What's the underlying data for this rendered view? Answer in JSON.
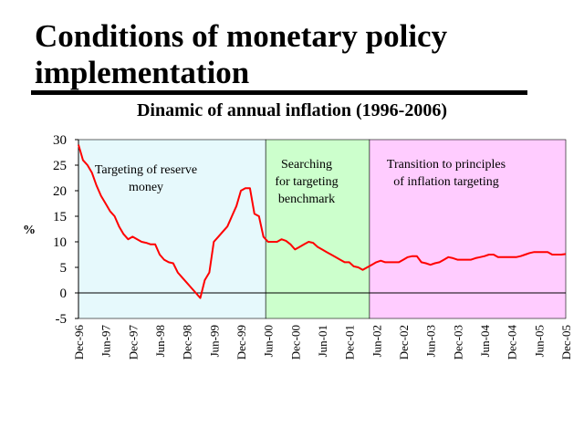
{
  "slide_title_line1": "Conditions of monetary policy",
  "slide_title_line2": "implementation",
  "chart_data": {
    "type": "line",
    "title": "Dinamic of annual inflation (1996-2006)",
    "ylabel": "%",
    "xlabel": "",
    "ylim": [
      -5,
      30
    ],
    "yticks": [
      -5,
      0,
      5,
      10,
      15,
      20,
      25,
      30
    ],
    "xlim": [
      0,
      108
    ],
    "x_tick_labels": [
      {
        "label": "Dec-96",
        "x": 0
      },
      {
        "label": "Jun-97",
        "x": 6
      },
      {
        "label": "Dec-97",
        "x": 12
      },
      {
        "label": "Jun-98",
        "x": 18
      },
      {
        "label": "Dec-98",
        "x": 24
      },
      {
        "label": "Jun-99",
        "x": 30
      },
      {
        "label": "Dec-99",
        "x": 36
      },
      {
        "label": "Jun-00",
        "x": 42
      },
      {
        "label": "Dec-00",
        "x": 48
      },
      {
        "label": "Jun-01",
        "x": 54
      },
      {
        "label": "Dec-01",
        "x": 60
      },
      {
        "label": "Jun-02",
        "x": 66
      },
      {
        "label": "Dec-02",
        "x": 72
      },
      {
        "label": "Jun-03",
        "x": 78
      },
      {
        "label": "Dec-03",
        "x": 84
      },
      {
        "label": "Jun-04",
        "x": 90
      },
      {
        "label": "Dec-04",
        "x": 96
      },
      {
        "label": "Jun-05",
        "x": 102
      },
      {
        "label": "Dec-05",
        "x": 108
      }
    ],
    "regions": [
      {
        "label_lines": [
          "Targeting of reserve",
          "money"
        ],
        "x_start": 0,
        "x_end": 41.5,
        "color": "#e6f9fc"
      },
      {
        "label_lines": [
          "Searching",
          "for targeting",
          "benchmark"
        ],
        "x_start": 41.5,
        "x_end": 64.5,
        "color": "#ccffcc"
      },
      {
        "label_lines": [
          "Transition to principles",
          "of inflation targeting"
        ],
        "x_start": 64.5,
        "x_end": 108,
        "color": "#ffccff"
      }
    ],
    "grid": false,
    "series": [
      {
        "color": "#ff0000",
        "points": [
          [
            0,
            29
          ],
          [
            1,
            26
          ],
          [
            2,
            25
          ],
          [
            3,
            23.5
          ],
          [
            4,
            21
          ],
          [
            5,
            19
          ],
          [
            6,
            17.5
          ],
          [
            7,
            16
          ],
          [
            8,
            15
          ],
          [
            9,
            13
          ],
          [
            10,
            11.5
          ],
          [
            11,
            10.5
          ],
          [
            12,
            11
          ],
          [
            13,
            10.5
          ],
          [
            14,
            10
          ],
          [
            15,
            9.8
          ],
          [
            16,
            9.5
          ],
          [
            17,
            9.5
          ],
          [
            18,
            7.5
          ],
          [
            19,
            6.5
          ],
          [
            20,
            6
          ],
          [
            21,
            5.8
          ],
          [
            22,
            4
          ],
          [
            23,
            3
          ],
          [
            24,
            2
          ],
          [
            25,
            1
          ],
          [
            26,
            0
          ],
          [
            27,
            -1
          ],
          [
            28,
            2.5
          ],
          [
            29,
            4
          ],
          [
            30,
            10
          ],
          [
            31,
            11
          ],
          [
            32,
            12
          ],
          [
            33,
            13
          ],
          [
            34,
            15
          ],
          [
            35,
            17
          ],
          [
            36,
            20
          ],
          [
            37,
            20.5
          ],
          [
            38,
            20.5
          ],
          [
            39,
            15.5
          ],
          [
            40,
            15
          ],
          [
            41,
            11
          ],
          [
            42,
            10
          ],
          [
            43,
            10
          ],
          [
            44,
            10
          ],
          [
            45,
            10.5
          ],
          [
            46,
            10.2
          ],
          [
            47,
            9.5
          ],
          [
            48,
            8.5
          ],
          [
            49,
            9
          ],
          [
            50,
            9.5
          ],
          [
            51,
            10
          ],
          [
            52,
            9.8
          ],
          [
            53,
            9
          ],
          [
            54,
            8.5
          ],
          [
            55,
            8
          ],
          [
            56,
            7.5
          ],
          [
            57,
            7
          ],
          [
            58,
            6.5
          ],
          [
            59,
            6
          ],
          [
            60,
            6
          ],
          [
            61,
            5.2
          ],
          [
            62,
            5
          ],
          [
            63,
            4.5
          ],
          [
            64,
            5
          ],
          [
            65,
            5.5
          ],
          [
            66,
            6
          ],
          [
            67,
            6.3
          ],
          [
            68,
            6
          ],
          [
            69,
            6
          ],
          [
            70,
            6
          ],
          [
            71,
            6
          ],
          [
            72,
            6.5
          ],
          [
            73,
            7
          ],
          [
            74,
            7.2
          ],
          [
            75,
            7.2
          ],
          [
            76,
            6
          ],
          [
            77,
            5.8
          ],
          [
            78,
            5.5
          ],
          [
            79,
            5.8
          ],
          [
            80,
            6
          ],
          [
            81,
            6.5
          ],
          [
            82,
            7
          ],
          [
            83,
            6.8
          ],
          [
            84,
            6.5
          ],
          [
            85,
            6.5
          ],
          [
            86,
            6.5
          ],
          [
            87,
            6.5
          ],
          [
            88,
            6.8
          ],
          [
            89,
            7
          ],
          [
            90,
            7.2
          ],
          [
            91,
            7.5
          ],
          [
            92,
            7.5
          ],
          [
            93,
            7
          ],
          [
            94,
            7
          ],
          [
            95,
            7
          ],
          [
            96,
            7
          ],
          [
            97,
            7
          ],
          [
            98,
            7.2
          ],
          [
            99,
            7.5
          ],
          [
            100,
            7.8
          ],
          [
            101,
            8
          ],
          [
            102,
            8
          ],
          [
            103,
            8
          ],
          [
            104,
            8
          ],
          [
            105,
            7.5
          ],
          [
            106,
            7.5
          ],
          [
            107,
            7.5
          ],
          [
            108,
            7.6
          ]
        ]
      }
    ]
  }
}
